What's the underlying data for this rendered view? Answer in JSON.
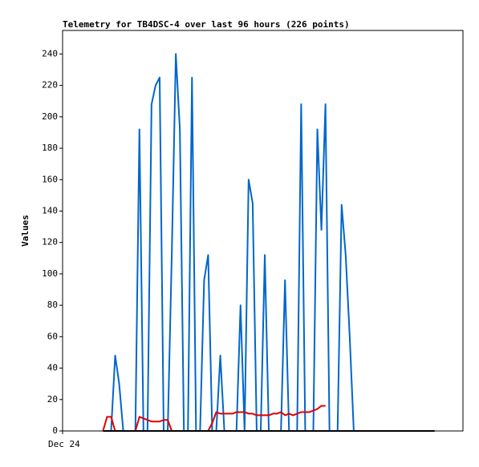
{
  "chart_data": {
    "type": "line",
    "title": "Telemetry for TB4DSC-4 over last 96 hours (226 points)",
    "y_label": "Values",
    "categories": [
      "Dec 24",
      null,
      null,
      null,
      null,
      null,
      null,
      null,
      null,
      null,
      null,
      null,
      null,
      null,
      null,
      null,
      null,
      null,
      null,
      null,
      null,
      null,
      null,
      null,
      null,
      null,
      null,
      null,
      null,
      null,
      null,
      null,
      null,
      null,
      null,
      null,
      null,
      null,
      null,
      null,
      null,
      null,
      null,
      null,
      null,
      null,
      null,
      null,
      null,
      null,
      null,
      null,
      null,
      null,
      null,
      null,
      null,
      null,
      null,
      null,
      null,
      null,
      null,
      null,
      null,
      null,
      null,
      null,
      null,
      null,
      null,
      null,
      null,
      null,
      null,
      null,
      null,
      null,
      null,
      null,
      null,
      null,
      null,
      null,
      null,
      null,
      null,
      null,
      null,
      null,
      null,
      null,
      null,
      null,
      null,
      null,
      null,
      null,
      null,
      null
    ],
    "series": [
      {
        "color": "#0066cc",
        "values": [
          null,
          null,
          null,
          null,
          null,
          null,
          null,
          null,
          null,
          null,
          0,
          0,
          0,
          48,
          30,
          0,
          0,
          0,
          0,
          192,
          0,
          0,
          208,
          220,
          225,
          0,
          0,
          112,
          240,
          192,
          0,
          0,
          225,
          0,
          0,
          96,
          112,
          0,
          0,
          48,
          0,
          0,
          0,
          0,
          80,
          0,
          160,
          145,
          0,
          0,
          112,
          0,
          0,
          0,
          0,
          96,
          0,
          0,
          0,
          208,
          0,
          0,
          0,
          192,
          128,
          208,
          0,
          0,
          0,
          144,
          112,
          60,
          0,
          0,
          0,
          0,
          0,
          0,
          0,
          0,
          0,
          0,
          0,
          0,
          0,
          0,
          0,
          0,
          0,
          0,
          0,
          0,
          0,
          null,
          null,
          null,
          null,
          null,
          null,
          null
        ]
      },
      {
        "color": "#e00000",
        "values": [
          null,
          null,
          null,
          null,
          null,
          null,
          null,
          null,
          null,
          null,
          0,
          9,
          9,
          0,
          0,
          0,
          0,
          0,
          0,
          9,
          8,
          7,
          6,
          6,
          6,
          7,
          7,
          0,
          0,
          0,
          0,
          0,
          0,
          0,
          0,
          0,
          0,
          5,
          12,
          11,
          11,
          11,
          11,
          12,
          12,
          12,
          11,
          11,
          10,
          10,
          10,
          10,
          11,
          11,
          12,
          10,
          11,
          10,
          11,
          12,
          12,
          12,
          13,
          14,
          16,
          16,
          null,
          null,
          null,
          null,
          null,
          null,
          null,
          null,
          null,
          null,
          null,
          null,
          null,
          null,
          null,
          null,
          null,
          null,
          null,
          null,
          null,
          null,
          null,
          null,
          null,
          null,
          null,
          null,
          null,
          null,
          null,
          null,
          null,
          null
        ]
      },
      {
        "color": "#000000",
        "values": [
          null,
          null,
          null,
          null,
          null,
          null,
          null,
          null,
          null,
          null,
          0,
          0,
          0,
          0,
          0,
          0,
          0,
          0,
          0,
          0,
          0,
          0,
          0,
          0,
          0,
          0,
          0,
          0,
          0,
          0,
          0,
          0,
          0,
          0,
          0,
          0,
          0,
          0,
          0,
          0,
          0,
          0,
          0,
          0,
          0,
          0,
          0,
          0,
          0,
          0,
          0,
          0,
          0,
          0,
          0,
          0,
          0,
          0,
          0,
          0,
          0,
          0,
          0,
          0,
          0,
          0,
          0,
          0,
          0,
          0,
          0,
          0,
          0,
          0,
          0,
          0,
          0,
          0,
          0,
          0,
          0,
          0,
          0,
          0,
          0,
          0,
          0,
          0,
          0,
          0,
          0,
          0,
          0,
          null,
          null,
          null,
          null,
          null,
          null,
          null
        ]
      }
    ],
    "ylim": [
      0,
      255
    ],
    "yticks": [
      0,
      20,
      40,
      60,
      80,
      100,
      120,
      140,
      160,
      180,
      200,
      220,
      240
    ],
    "grid": false
  }
}
